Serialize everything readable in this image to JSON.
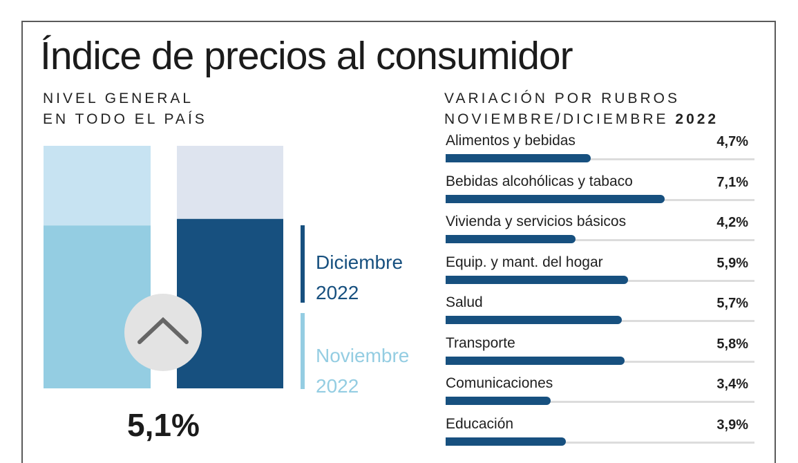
{
  "title": "Índice de precios al consumidor",
  "left_heading": {
    "line1": "NIVEL GENERAL",
    "line2": "EN TODO EL PAÍS"
  },
  "right_heading": {
    "line1": "VARIACIÓN POR RUBROS",
    "line2_prefix": "NOVIEMBRE/DICIEMBRE",
    "line2_year": "2022"
  },
  "general_value": "5,1%",
  "legend": {
    "current": {
      "month": "Diciembre",
      "year": "2022",
      "color": "#17507f"
    },
    "previous": {
      "month": "Noviembre",
      "year": "2022",
      "color": "#94cde2"
    }
  },
  "icons": {
    "trend": "chevron-up-icon"
  },
  "chart_data": [
    {
      "type": "bar",
      "title": "NIVEL GENERAL EN TODO EL PAÍS",
      "categories": [
        "Noviembre 2022",
        "Diciembre 2022"
      ],
      "values": [
        4.9,
        5.1
      ],
      "units": "%",
      "ylim": [
        0,
        7.3
      ],
      "annotation": "5,1%",
      "colors": {
        "noviembre": "#94cde2",
        "noviembre_bg": "#c7e3f2",
        "diciembre": "#17507f",
        "diciembre_bg": "#dee4ef"
      }
    },
    {
      "type": "bar",
      "orientation": "horizontal",
      "title": "VARIACIÓN POR RUBROS NOVIEMBRE/DICIEMBRE 2022",
      "xlim": [
        0,
        10
      ],
      "categories": [
        "Alimentos y bebidas",
        "Bebidas alcohólicas y tabaco",
        "Vivienda y servicios básicos",
        "Equip. y mant. del hogar",
        "Salud",
        "Transporte",
        "Comunicaciones",
        "Educación"
      ],
      "values": [
        4.7,
        7.1,
        4.2,
        5.9,
        5.7,
        5.8,
        3.4,
        3.9
      ],
      "value_labels": [
        "4,7%",
        "7,1%",
        "4,2%",
        "5,9%",
        "5,7%",
        "5,8%",
        "3,4%",
        "3,9%"
      ],
      "color": "#17507f"
    }
  ]
}
